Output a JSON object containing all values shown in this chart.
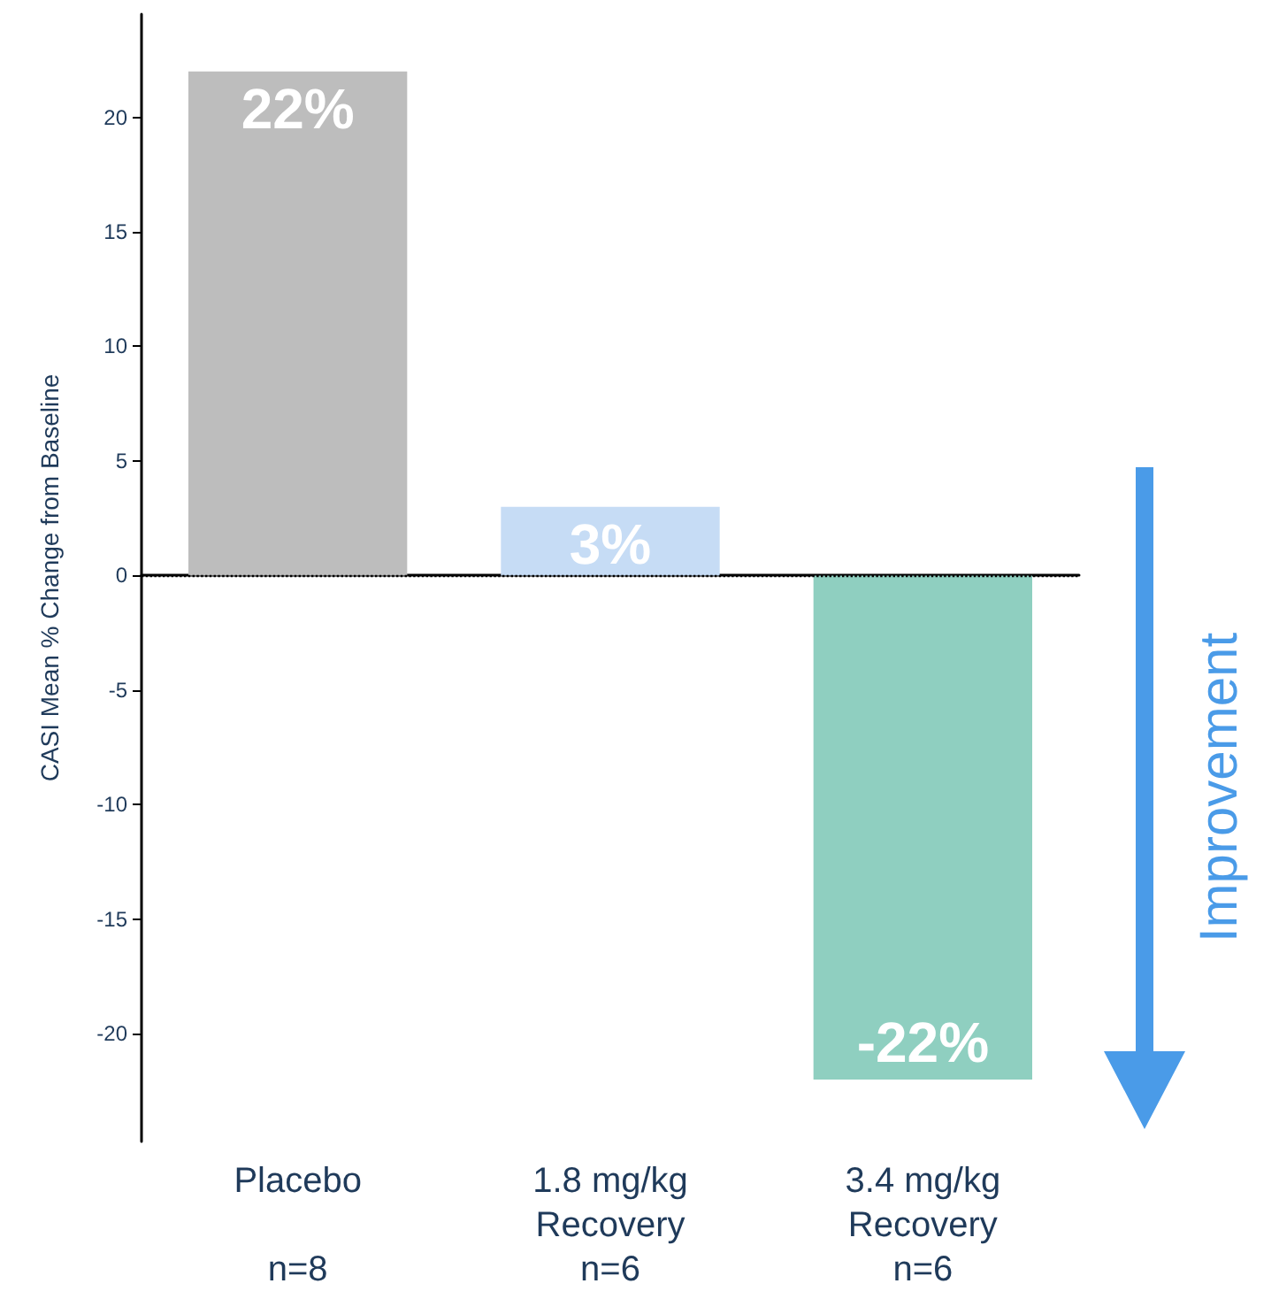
{
  "chart_data": {
    "type": "bar",
    "ylabel": "CASI Mean % Change from Baseline",
    "categories": [
      "Placebo\n\nn=8",
      "1.8 mg/kg\nRecovery\nn=6",
      "3.4 mg/kg\nRecovery\nn=6"
    ],
    "values": [
      22,
      3,
      -22
    ],
    "colors": [
      "#bdbdbd",
      "#c6dcf5",
      "#8fcfc0"
    ],
    "value_labels": [
      "22%",
      "3%",
      "-22%"
    ],
    "ylim": [
      -24.7,
      24.5
    ],
    "yticks": [
      -20,
      -15,
      -10,
      -5,
      0,
      5,
      10,
      15,
      20
    ],
    "grid": false,
    "ref_lines": [
      {
        "axis": "y",
        "value": 0,
        "color": "#000000",
        "line_style": "dotted"
      }
    ],
    "annotations": [
      "Improvement"
    ]
  }
}
